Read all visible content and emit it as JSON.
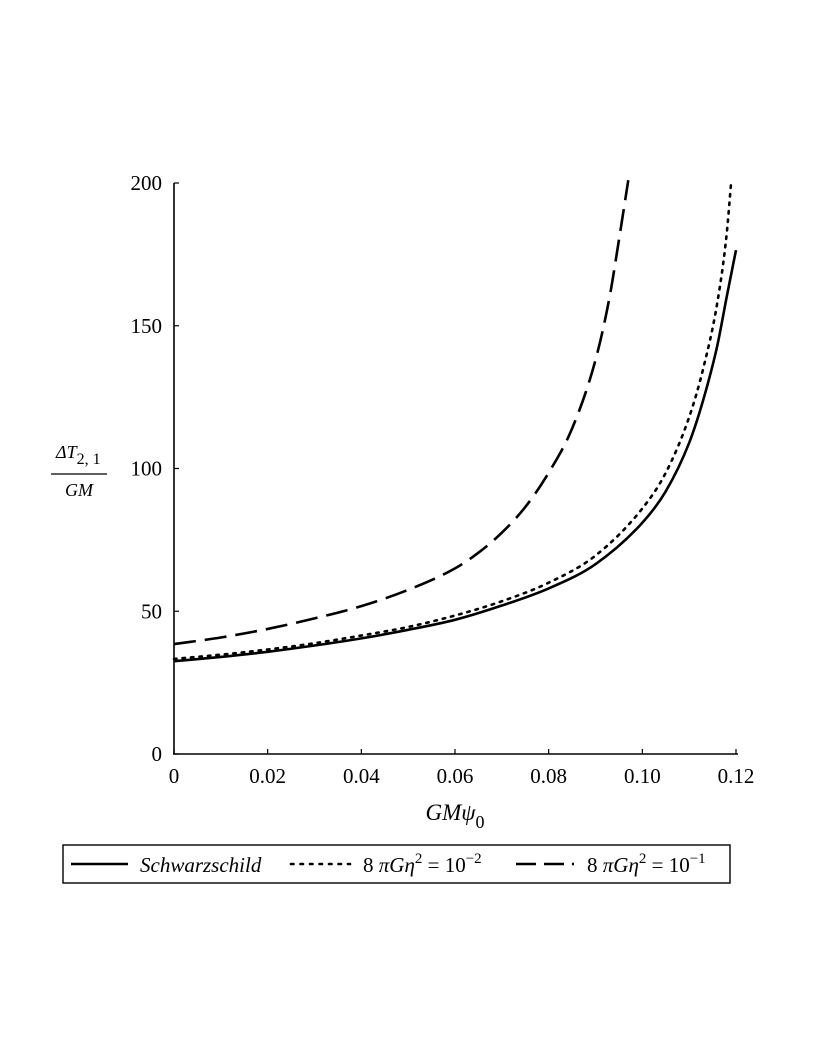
{
  "chart_data": {
    "type": "line",
    "title": "",
    "xlabel": {
      "main": "GMψ",
      "sub": "0"
    },
    "ylabel": {
      "numerator": "ΔT",
      "numerator_sub": "2, 1",
      "denominator": "GM"
    },
    "xlim": [
      0,
      0.12
    ],
    "ylim": [
      0,
      200
    ],
    "xticks": [
      "0",
      "0.02",
      "0.04",
      "0.06",
      "0.08",
      "0.10",
      "0.12"
    ],
    "yticks": [
      "0",
      "50",
      "100",
      "150",
      "200"
    ],
    "xtick_values": [
      0,
      0.02,
      0.04,
      0.06,
      0.08,
      0.1,
      0.12
    ],
    "ytick_values": [
      0,
      50,
      100,
      150,
      200
    ],
    "grid": false,
    "legend_position": "bottom",
    "series": [
      {
        "name": "Schwarzschild",
        "style": "solid",
        "x": [
          0,
          0.01,
          0.02,
          0.03,
          0.04,
          0.05,
          0.06,
          0.07,
          0.08,
          0.09,
          0.1,
          0.105,
          0.11,
          0.113,
          0.116,
          0.118,
          0.12
        ],
        "y": [
          32.5,
          34.0,
          35.8,
          38.0,
          40.5,
          43.5,
          47.0,
          52.0,
          58.0,
          66.5,
          81.0,
          92.0,
          109.0,
          124.0,
          143.0,
          160.0,
          176.5
        ]
      },
      {
        "name": "8 πGη² = 10⁻²",
        "legend": {
          "prefix": "8 ",
          "pi": "π",
          "mid": "Gη",
          "sup1": "2",
          "eq": " = 10",
          "sup2": "−2"
        },
        "style": "dotted",
        "x": [
          0,
          0.01,
          0.02,
          0.03,
          0.04,
          0.05,
          0.06,
          0.07,
          0.08,
          0.09,
          0.1,
          0.105,
          0.11,
          0.113,
          0.116,
          0.118,
          0.119
        ],
        "y": [
          33.3,
          34.8,
          36.6,
          38.8,
          41.5,
          44.5,
          48.5,
          53.5,
          60.0,
          69.5,
          86.0,
          98.5,
          118.0,
          135.0,
          158.0,
          182.0,
          201.0
        ]
      },
      {
        "name": "8 πGη² = 10⁻¹",
        "legend": {
          "prefix": "8 ",
          "pi": "π",
          "mid": "Gη",
          "sup1": "2",
          "eq": " = 10",
          "sup2": "−1"
        },
        "style": "dashed",
        "x": [
          0,
          0.01,
          0.02,
          0.03,
          0.04,
          0.05,
          0.06,
          0.065,
          0.07,
          0.075,
          0.08,
          0.085,
          0.09,
          0.093,
          0.095,
          0.097
        ],
        "y": [
          38.5,
          40.8,
          43.8,
          47.5,
          51.8,
          57.5,
          65.0,
          70.5,
          77.5,
          86.5,
          98.5,
          114.0,
          138.0,
          160.0,
          180.0,
          201.0
        ]
      }
    ]
  }
}
